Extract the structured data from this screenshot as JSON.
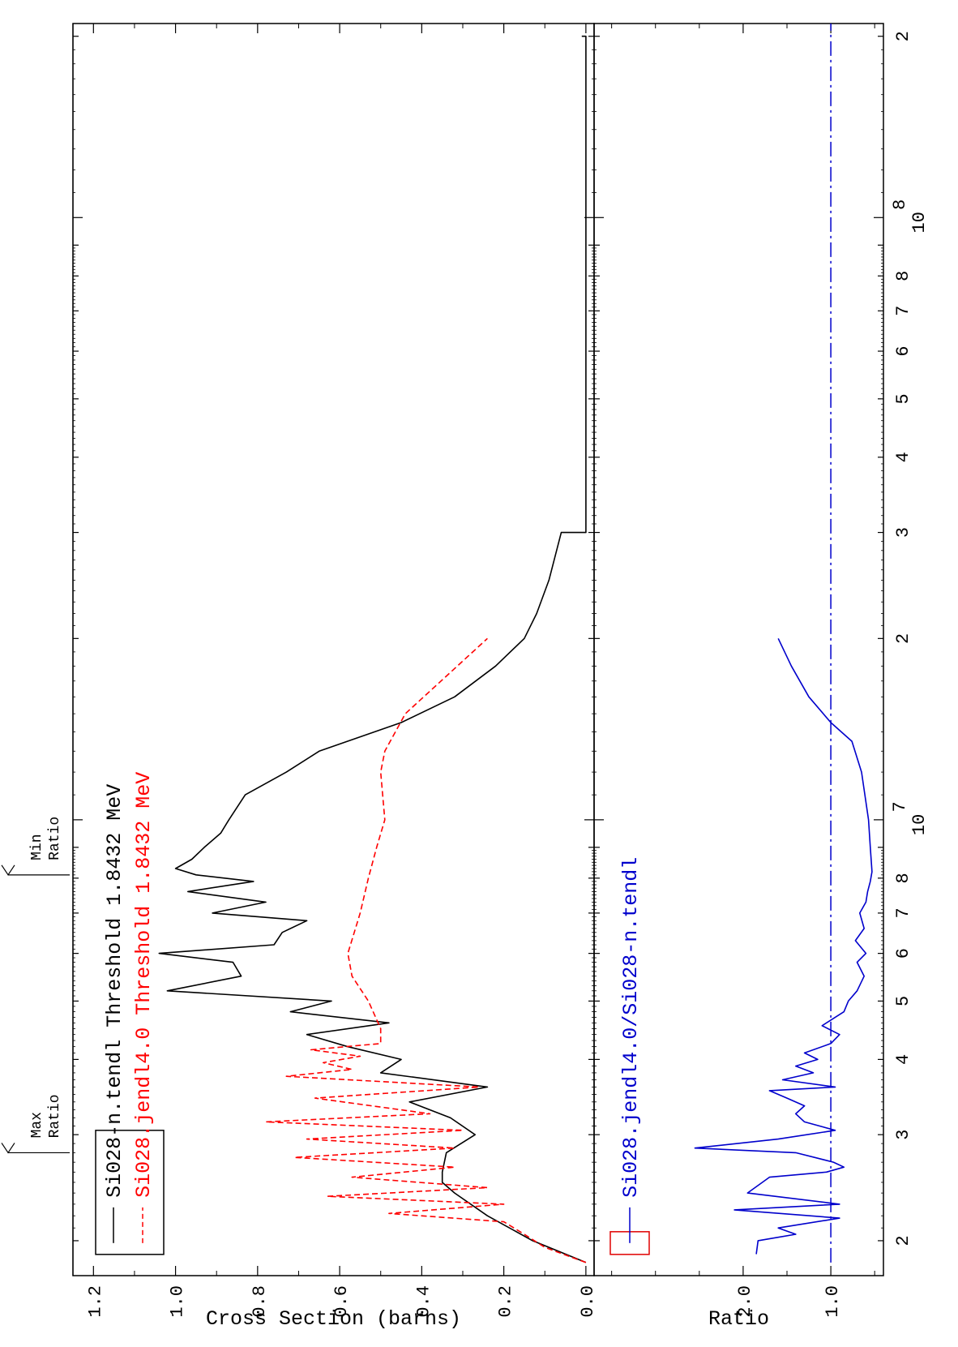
{
  "chart_data": [
    {
      "type": "line",
      "panel": "cross-section",
      "ylabel": "Cross Section (barns)",
      "xscale": "log",
      "xlim": [
        1750000.0,
        210000000.0
      ],
      "ylim": [
        -0.02,
        1.25
      ],
      "yticks": [
        "0.0",
        "0.2",
        "0.4",
        "0.6",
        "0.8",
        "1.0",
        "1.2"
      ],
      "xtick_labels": {
        "2e6": "2",
        "3e6": "3",
        "4e6": "4",
        "5e6": "5",
        "6e6": "6",
        "7e6": "7",
        "8e6": "8",
        "1e7": "10",
        "1e7_exp": "7",
        "2e7": "2",
        "3e7": "3",
        "4e7": "4",
        "5e7": "5",
        "6e7": "6",
        "7e7": "7",
        "8e7": "8",
        "1e8": "10",
        "1e8_exp": "8",
        "2e8": "2"
      },
      "legend": {
        "position": "top-left",
        "border_color": "#000000",
        "entries": [
          {
            "label": "Si028-n.tendl Threshold 1.8432 MeV",
            "color": "#000000",
            "style": "solid"
          },
          {
            "label": "Si028.jendl4.0 Threshold 1.8432 MeV",
            "color": "#ff0000",
            "style": "dashed"
          }
        ]
      },
      "annotations": [
        {
          "line1": "Max",
          "line2": "Ratio",
          "energy": 2800000.0
        },
        {
          "line1": "Min",
          "line2": "Ratio",
          "energy": 8100000.0
        }
      ],
      "series": [
        {
          "name": "Si028-n.tendl Threshold 1.8432 MeV",
          "color": "#000000",
          "style": "solid",
          "points": [
            [
              1840000.0,
              0.0
            ],
            [
              2000000.0,
              0.13
            ],
            [
              2200000.0,
              0.24
            ],
            [
              2400000.0,
              0.32
            ],
            [
              2500000.0,
              0.35
            ],
            [
              2600000.0,
              0.35
            ],
            [
              2800000.0,
              0.34
            ],
            [
              3000000.0,
              0.27
            ],
            [
              3200000.0,
              0.33
            ],
            [
              3400000.0,
              0.43
            ],
            [
              3600000.0,
              0.24
            ],
            [
              3800000.0,
              0.5
            ],
            [
              4000000.0,
              0.45
            ],
            [
              4200000.0,
              0.58
            ],
            [
              4400000.0,
              0.68
            ],
            [
              4600000.0,
              0.48
            ],
            [
              4800000.0,
              0.72
            ],
            [
              5000000.0,
              0.62
            ],
            [
              5200000.0,
              1.02
            ],
            [
              5500000.0,
              0.84
            ],
            [
              5800000.0,
              0.86
            ],
            [
              6000000.0,
              1.04
            ],
            [
              6200000.0,
              0.76
            ],
            [
              6500000.0,
              0.74
            ],
            [
              6800000.0,
              0.68
            ],
            [
              7000000.0,
              0.91
            ],
            [
              7300000.0,
              0.78
            ],
            [
              7600000.0,
              0.97
            ],
            [
              7900000.0,
              0.81
            ],
            [
              8100000.0,
              0.95
            ],
            [
              8300000.0,
              1.0
            ],
            [
              8600000.0,
              0.96
            ],
            [
              9000000.0,
              0.93
            ],
            [
              9500000.0,
              0.89
            ],
            [
              10000000.0,
              0.87
            ],
            [
              11000000.0,
              0.83
            ],
            [
              12000000.0,
              0.73
            ],
            [
              13000000.0,
              0.65
            ],
            [
              14500000.0,
              0.45
            ],
            [
              16000000.0,
              0.32
            ],
            [
              18000000.0,
              0.22
            ],
            [
              20000000.0,
              0.15
            ],
            [
              22000000.0,
              0.12
            ],
            [
              25000000.0,
              0.09
            ],
            [
              30000000.0,
              0.06
            ],
            [
              30000000.0,
              0.0
            ],
            [
              200000000.0,
              0.0
            ],
            [
              200000000.0,
              0.01
            ]
          ]
        },
        {
          "name": "Si028.jendl4.0 Threshold 1.8432 MeV",
          "color": "#ff0000",
          "style": "dashed",
          "points": [
            [
              1840000.0,
              0.0
            ],
            [
              1950000.0,
              0.1
            ],
            [
              2050000.0,
              0.15
            ],
            [
              2150000.0,
              0.2
            ],
            [
              2220000.0,
              0.48
            ],
            [
              2300000.0,
              0.2
            ],
            [
              2370000.0,
              0.63
            ],
            [
              2450000.0,
              0.24
            ],
            [
              2550000.0,
              0.57
            ],
            [
              2650000.0,
              0.32
            ],
            [
              2750000.0,
              0.71
            ],
            [
              2850000.0,
              0.32
            ],
            [
              2950000.0,
              0.68
            ],
            [
              3050000.0,
              0.3
            ],
            [
              3150000.0,
              0.78
            ],
            [
              3250000.0,
              0.38
            ],
            [
              3450000.0,
              0.66
            ],
            [
              3600000.0,
              0.26
            ],
            [
              3750000.0,
              0.73
            ],
            [
              3850000.0,
              0.57
            ],
            [
              3950000.0,
              0.64
            ],
            [
              4050000.0,
              0.55
            ],
            [
              4150000.0,
              0.67
            ],
            [
              4250000.0,
              0.5
            ],
            [
              4500000.0,
              0.5
            ],
            [
              5000000.0,
              0.53
            ],
            [
              5500000.0,
              0.57
            ],
            [
              6000000.0,
              0.58
            ],
            [
              7000000.0,
              0.55
            ],
            [
              8000000.0,
              0.53
            ],
            [
              9000000.0,
              0.51
            ],
            [
              10000000.0,
              0.49
            ],
            [
              12000000.0,
              0.5
            ],
            [
              13000000.0,
              0.49
            ],
            [
              15000000.0,
              0.44
            ],
            [
              20000000.0,
              0.24
            ]
          ]
        }
      ]
    },
    {
      "type": "line",
      "panel": "ratio",
      "ylabel": "Ratio",
      "xscale": "log",
      "xlim": [
        1750000.0,
        210000000.0
      ],
      "ylim": [
        0.4,
        3.7
      ],
      "yticks": [
        "1.0",
        "2.0"
      ],
      "legend": {
        "position": "top-left",
        "border_color": "#e00000",
        "entries": [
          {
            "label": "Si028.jendl4.0/Si028-n.tendl",
            "color": "#0000cc",
            "style": "solid"
          }
        ]
      },
      "reference_line": {
        "y": 1.0,
        "color": "#0000cc",
        "style": "dashdot"
      },
      "series": [
        {
          "name": "Si028.jendl4.0/Si028-n.tendl",
          "color": "#0000cc",
          "style": "solid",
          "points": [
            [
              1900000.0,
              1.85
            ],
            [
              2000000.0,
              1.83
            ],
            [
              2050000.0,
              1.4
            ],
            [
              2100000.0,
              1.6
            ],
            [
              2180000.0,
              0.9
            ],
            [
              2250000.0,
              2.1
            ],
            [
              2300000.0,
              0.9
            ],
            [
              2400000.0,
              1.95
            ],
            [
              2550000.0,
              1.7
            ],
            [
              2600000.0,
              1.05
            ],
            [
              2650000.0,
              0.85
            ],
            [
              2700000.0,
              0.97
            ],
            [
              2800000.0,
              1.4
            ],
            [
              2850000.0,
              2.55
            ],
            [
              2950000.0,
              1.6
            ],
            [
              3050000.0,
              0.95
            ],
            [
              3150000.0,
              1.3
            ],
            [
              3250000.0,
              1.4
            ],
            [
              3350000.0,
              1.3
            ],
            [
              3450000.0,
              1.5
            ],
            [
              3550000.0,
              1.7
            ],
            [
              3600000.0,
              0.95
            ],
            [
              3700000.0,
              1.55
            ],
            [
              3800000.0,
              1.2
            ],
            [
              3900000.0,
              1.4
            ],
            [
              4000000.0,
              1.15
            ],
            [
              4100000.0,
              1.3
            ],
            [
              4250000.0,
              1.0
            ],
            [
              4400000.0,
              0.9
            ],
            [
              4550000.0,
              1.1
            ],
            [
              4800000.0,
              0.85
            ],
            [
              5000000.0,
              0.8
            ],
            [
              5200000.0,
              0.7
            ],
            [
              5500000.0,
              0.62
            ],
            [
              5800000.0,
              0.7
            ],
            [
              6000000.0,
              0.6
            ],
            [
              6300000.0,
              0.72
            ],
            [
              6600000.0,
              0.62
            ],
            [
              7000000.0,
              0.67
            ],
            [
              7300000.0,
              0.6
            ],
            [
              7600000.0,
              0.58
            ],
            [
              7900000.0,
              0.55
            ],
            [
              8200000.0,
              0.53
            ],
            [
              9000000.0,
              0.55
            ],
            [
              10000000.0,
              0.57
            ],
            [
              12000000.0,
              0.65
            ],
            [
              13500000.0,
              0.76
            ],
            [
              14500000.0,
              1.0
            ],
            [
              16000000.0,
              1.25
            ],
            [
              18000000.0,
              1.45
            ],
            [
              20000000.0,
              1.6
            ]
          ]
        }
      ]
    }
  ]
}
